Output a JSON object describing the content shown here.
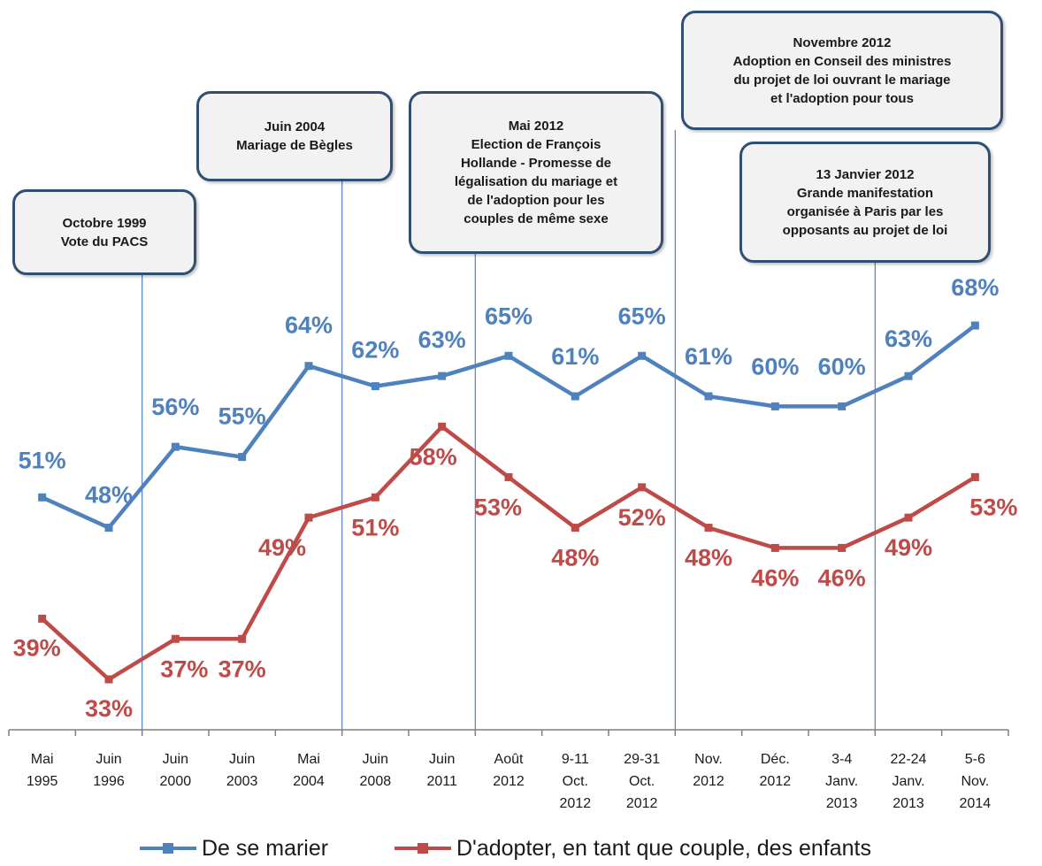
{
  "chart_data": {
    "type": "line",
    "categories": [
      [
        "Mai",
        "1995"
      ],
      [
        "Juin",
        "1996"
      ],
      [
        "Juin",
        "2000"
      ],
      [
        "Juin",
        "2003"
      ],
      [
        "Mai",
        "2004"
      ],
      [
        "Juin",
        "2008"
      ],
      [
        "Juin",
        "2011"
      ],
      [
        "Août",
        "2012"
      ],
      [
        "9-11",
        "Oct.",
        "2012"
      ],
      [
        "29-31",
        "Oct.",
        "2012"
      ],
      [
        "Nov.",
        "2012"
      ],
      [
        "Déc.",
        "2012"
      ],
      [
        "3-4",
        "Janv.",
        "2013"
      ],
      [
        "22-24",
        "Janv.",
        "2013"
      ],
      [
        "5-6",
        "Nov.",
        "2014"
      ]
    ],
    "series": [
      {
        "name": "De se marier",
        "color": "#4f81bd",
        "values": [
          51,
          48,
          56,
          55,
          64,
          62,
          63,
          65,
          61,
          65,
          61,
          60,
          60,
          63,
          68
        ],
        "labels": [
          "51%",
          "48%",
          "56%",
          "55%",
          "64%",
          "62%",
          "63%",
          "65%",
          "61%",
          "65%",
          "61%",
          "60%",
          "60%",
          "63%",
          "68%"
        ]
      },
      {
        "name": "D'adopter, en tant que couple, des enfants",
        "color": "#be4b48",
        "values": [
          39,
          33,
          37,
          37,
          49,
          51,
          58,
          53,
          48,
          52,
          48,
          46,
          46,
          49,
          53
        ],
        "labels": [
          "39%",
          "33%",
          "37%",
          "37%",
          "49%",
          "51%",
          "58%",
          "53%",
          "48%",
          "52%",
          "48%",
          "46%",
          "46%",
          "49%",
          "53%"
        ]
      }
    ],
    "ylim": [
      30,
      70
    ],
    "grid": false,
    "legend_position": "bottom",
    "annotations": [
      {
        "lines": [
          "Octobre 1999",
          "Vote du PACS"
        ],
        "after_category_index": 1
      },
      {
        "lines": [
          "Juin 2004",
          "Mariage de Bègles"
        ],
        "after_category_index": 4
      },
      {
        "lines": [
          "Mai 2012",
          "Election de François",
          "Hollande - Promesse de",
          "légalisation du mariage et",
          "de l'adoption pour les",
          "couples de même sexe"
        ],
        "after_category_index": 6
      },
      {
        "lines": [
          "Novembre 2012",
          "Adoption en Conseil des ministres",
          "du projet de loi ouvrant le mariage",
          "et l'adoption pour tous"
        ],
        "after_category_index": 9
      },
      {
        "lines": [
          "13 Janvier 2012",
          "Grande manifestation",
          "organisée à Paris par les",
          "opposants au projet de loi"
        ],
        "after_category_index": 12
      }
    ]
  }
}
